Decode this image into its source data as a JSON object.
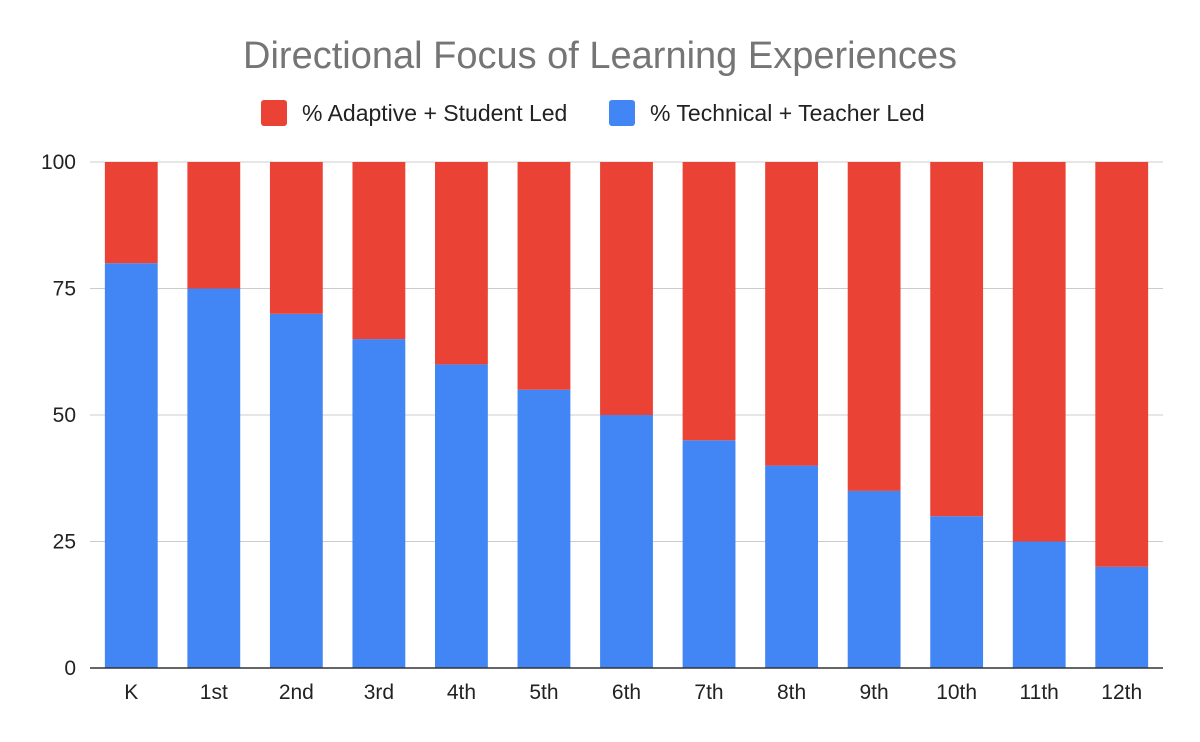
{
  "chart_data": {
    "type": "bar",
    "stacked": true,
    "title": "Directional Focus of Learning Experiences",
    "xlabel": "",
    "ylabel": "",
    "categories": [
      "K",
      "1st",
      "2nd",
      "3rd",
      "4th",
      "5th",
      "6th",
      "7th",
      "8th",
      "9th",
      "10th",
      "11th",
      "12th"
    ],
    "series": [
      {
        "name": "% Technical + Teacher Led",
        "color": "#4285f4",
        "values": [
          80,
          75,
          70,
          65,
          60,
          55,
          50,
          45,
          40,
          35,
          30,
          25,
          20
        ]
      },
      {
        "name": "% Adaptive + Student Led",
        "color": "#ea4335",
        "values": [
          20,
          25,
          30,
          35,
          40,
          45,
          50,
          55,
          60,
          65,
          70,
          75,
          80
        ]
      }
    ],
    "legend_order": [
      "% Adaptive + Student Led",
      "% Technical + Teacher Led"
    ],
    "legend_position": "top",
    "ylim": [
      0,
      100
    ],
    "yticks": [
      0,
      25,
      50,
      75,
      100
    ],
    "grid": true
  }
}
